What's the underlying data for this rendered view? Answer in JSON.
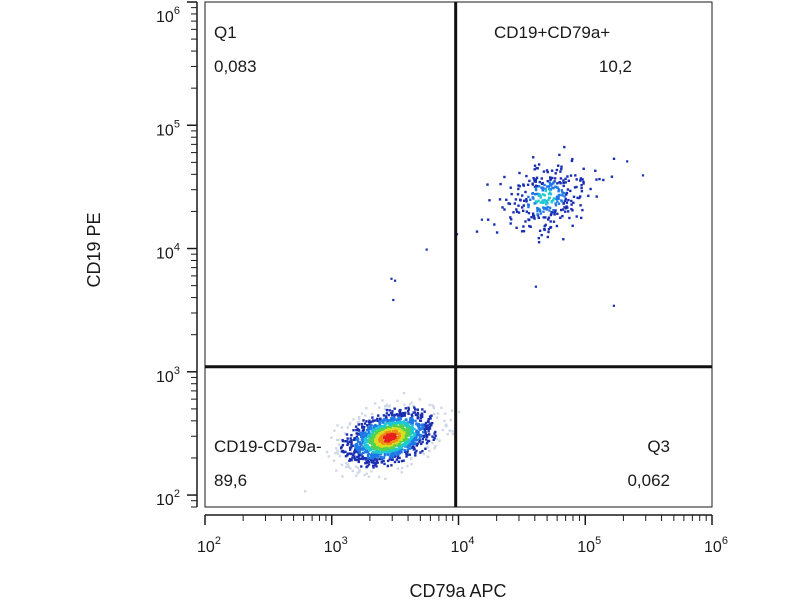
{
  "chart_data": {
    "type": "scatter",
    "xlabel": "CD79a APC",
    "ylabel": "CD19 PE",
    "x_scale": "log",
    "y_scale": "log",
    "xlim": [
      100,
      1000000
    ],
    "ylim": [
      80,
      1000000
    ],
    "x_ticks": [
      {
        "base": "10",
        "exp": "2",
        "value": 100
      },
      {
        "base": "10",
        "exp": "3",
        "value": 1000
      },
      {
        "base": "10",
        "exp": "4",
        "value": 10000
      },
      {
        "base": "10",
        "exp": "5",
        "value": 100000
      },
      {
        "base": "10",
        "exp": "6",
        "value": 1000000
      }
    ],
    "y_ticks": [
      {
        "base": "10",
        "exp": "2",
        "value": 100
      },
      {
        "base": "10",
        "exp": "3",
        "value": 1000
      },
      {
        "base": "10",
        "exp": "4",
        "value": 10000
      },
      {
        "base": "10",
        "exp": "5",
        "value": 100000
      },
      {
        "base": "10",
        "exp": "6",
        "value": 1000000
      }
    ],
    "gates": {
      "x_threshold": 9500,
      "y_threshold": 1100
    },
    "quadrants": [
      {
        "name": "Q1",
        "percent": "0,083",
        "position": "top-left"
      },
      {
        "name": "CD19+CD79a+",
        "percent": "10,2",
        "position": "top-right"
      },
      {
        "name": "CD19-CD79a-",
        "percent": "89,6",
        "position": "bottom-left"
      },
      {
        "name": "Q3",
        "percent": "0,062",
        "position": "bottom-right"
      }
    ],
    "populations": [
      {
        "center": [
          2800,
          300
        ],
        "spread_log": [
          0.17,
          0.1
        ],
        "count": 1500
      },
      {
        "center": [
          48000,
          26000
        ],
        "spread_log": [
          0.17,
          0.14
        ],
        "count": 320
      }
    ],
    "outliers": [
      [
        5500,
        10000
      ],
      [
        2900,
        5800
      ],
      [
        3100,
        5600
      ],
      [
        3000,
        3900
      ],
      [
        165000,
        3500
      ],
      [
        280000,
        40000
      ],
      [
        210000,
        52000
      ],
      [
        40000,
        5000
      ],
      [
        15000,
        17500
      ]
    ],
    "density_colors": [
      "#cfd8e6",
      "#1a2fb0",
      "#1e78e6",
      "#1ec8d2",
      "#50d250",
      "#dcdc1e",
      "#f08c14",
      "#e61e1e"
    ],
    "grid": false,
    "legend": "none"
  }
}
